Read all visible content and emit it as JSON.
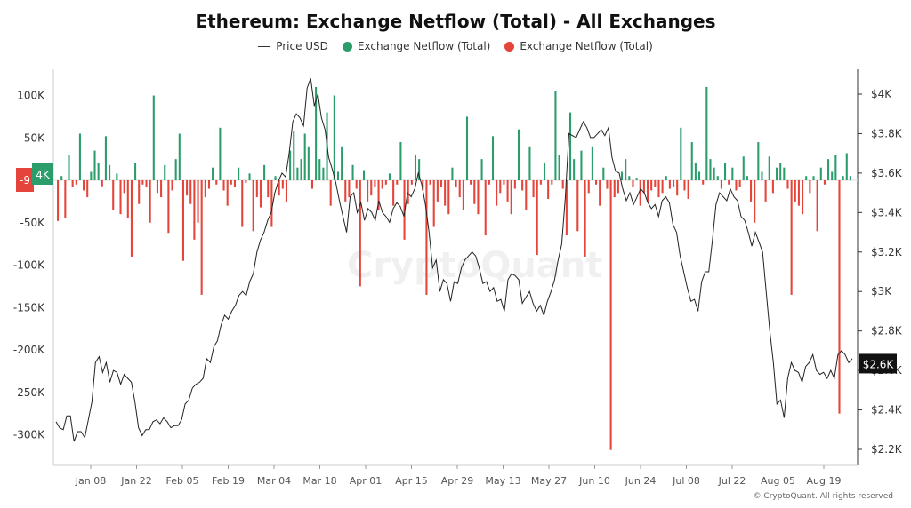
{
  "title": "Ethereum: Exchange Netflow (Total) - All Exchanges",
  "legend": {
    "price": "Price USD",
    "inflow": "Exchange Netflow (Total)",
    "outflow": "Exchange Netflow (Total)"
  },
  "watermark": "CryptoQuant",
  "copyright": "© CryptoQuant. All rights reserved",
  "badges": {
    "left_red": "-9",
    "left_green": "4K",
    "right_price": "$2.6K"
  },
  "colors": {
    "inflow": "#2a9d6a",
    "outflow": "#e5443a",
    "price": "#222222"
  },
  "chart_data": {
    "type": "bar",
    "left_axis": {
      "label": "",
      "ticks": [
        "100K",
        "50K",
        "0",
        "-50K",
        "-100K",
        "-150K",
        "-200K",
        "-250K",
        "-300K"
      ],
      "range": [
        -320000,
        120000
      ]
    },
    "right_axis": {
      "label": "",
      "ticks": [
        "$4K",
        "$3.8K",
        "$3.6K",
        "$3.4K",
        "$3.2K",
        "$3K",
        "$2.8K",
        "$2.6K",
        "$2.4K",
        "$2.2K"
      ],
      "range": [
        2200,
        4080
      ]
    },
    "x_ticks": [
      "Jan 08",
      "Jan 22",
      "Feb 05",
      "Feb 19",
      "Mar 04",
      "Mar 18",
      "Apr 01",
      "Apr 15",
      "Apr 29",
      "May 13",
      "May 27",
      "Jun 10",
      "Jun 24",
      "Jul 08",
      "Jul 22",
      "Aug 05",
      "Aug 19"
    ],
    "netflow_series": {
      "name": "Exchange Netflow (Total)",
      "values": [
        -48000,
        5000,
        -45000,
        30000,
        -8000,
        -5000,
        55000,
        -12000,
        -20000,
        10000,
        35000,
        20000,
        -7000,
        52000,
        18000,
        -35000,
        8000,
        -40000,
        -15000,
        -45000,
        -90000,
        20000,
        -28000,
        -5000,
        -8000,
        -50000,
        100000,
        -15000,
        -20000,
        18000,
        -62000,
        -12000,
        25000,
        55000,
        -95000,
        -18000,
        -28000,
        -70000,
        -50000,
        -135000,
        -20000,
        -10000,
        15000,
        -5000,
        62000,
        -12000,
        -30000,
        -5000,
        -8000,
        15000,
        -55000,
        -3000,
        8000,
        -60000,
        -20000,
        -32000,
        18000,
        -20000,
        -55000,
        5000,
        -18000,
        -10000,
        -25000,
        35000,
        58000,
        15000,
        25000,
        55000,
        40000,
        -10000,
        110000,
        25000,
        15000,
        80000,
        -30000,
        100000,
        10000,
        40000,
        -25000,
        -20000,
        18000,
        -10000,
        -125000,
        12000,
        -25000,
        -18000,
        -8000,
        -35000,
        -10000,
        -5000,
        8000,
        -30000,
        -5000,
        45000,
        -70000,
        -28000,
        -5000,
        30000,
        25000,
        -12000,
        -135000,
        -5000,
        -55000,
        -25000,
        -8000,
        -30000,
        -40000,
        15000,
        -8000,
        -20000,
        -35000,
        75000,
        -5000,
        -28000,
        -40000,
        25000,
        -65000,
        -5000,
        52000,
        -30000,
        -15000,
        -5000,
        -25000,
        -40000,
        -10000,
        60000,
        -12000,
        -35000,
        40000,
        -20000,
        -88000,
        -5000,
        20000,
        -22000,
        -5000,
        105000,
        30000,
        -10000,
        -65000,
        80000,
        25000,
        -60000,
        35000,
        -90000,
        -15000,
        40000,
        -5000,
        -30000,
        15000,
        -10000,
        -318000,
        -20000,
        -15000,
        10000,
        25000,
        5000,
        -8000,
        3000,
        -30000,
        -15000,
        -25000,
        -12000,
        -8000,
        -20000,
        -15000,
        5000,
        -10000,
        -8000,
        -18000,
        62000,
        -12000,
        -22000,
        45000,
        20000,
        10000,
        -5000,
        110000,
        25000,
        15000,
        5000,
        -10000,
        20000,
        -5000,
        15000,
        -12000,
        -8000,
        28000,
        5000,
        -25000,
        -50000,
        45000,
        10000,
        -25000,
        28000,
        -15000,
        15000,
        20000,
        15000,
        -10000,
        -135000,
        -25000,
        -30000,
        -40000,
        5000,
        -15000,
        5000,
        -60000,
        15000,
        -5000,
        25000,
        10000,
        30000,
        -275000,
        5000,
        32000,
        5000
      ],
      "positive_color": "#2a9d6a",
      "negative_color": "#e5443a"
    },
    "price_series": {
      "name": "Price USD",
      "values": [
        2340,
        2310,
        2300,
        2370,
        2370,
        2240,
        2290,
        2290,
        2260,
        2350,
        2440,
        2640,
        2670,
        2590,
        2640,
        2540,
        2600,
        2590,
        2530,
        2580,
        2560,
        2540,
        2440,
        2310,
        2270,
        2300,
        2300,
        2340,
        2350,
        2330,
        2360,
        2340,
        2310,
        2320,
        2320,
        2350,
        2430,
        2450,
        2510,
        2530,
        2540,
        2560,
        2660,
        2640,
        2720,
        2750,
        2830,
        2880,
        2860,
        2900,
        2930,
        2980,
        3000,
        2980,
        3050,
        3090,
        3200,
        3260,
        3300,
        3360,
        3400,
        3500,
        3560,
        3600,
        3580,
        3700,
        3860,
        3900,
        3880,
        3840,
        4030,
        4080,
        3940,
        4000,
        3880,
        3820,
        3680,
        3620,
        3550,
        3460,
        3380,
        3300,
        3480,
        3500,
        3400,
        3450,
        3360,
        3420,
        3400,
        3360,
        3460,
        3400,
        3380,
        3350,
        3420,
        3450,
        3430,
        3380,
        3500,
        3480,
        3520,
        3600,
        3540,
        3440,
        3300,
        3120,
        3160,
        3000,
        3060,
        3040,
        2950,
        3050,
        3040,
        3120,
        3160,
        3180,
        3200,
        3180,
        3120,
        3040,
        3050,
        3000,
        3020,
        2950,
        2960,
        2900,
        3060,
        3090,
        3080,
        3060,
        2940,
        2970,
        3000,
        2940,
        2900,
        2930,
        2880,
        2950,
        3000,
        3060,
        3160,
        3240,
        3480,
        3800,
        3790,
        3780,
        3820,
        3860,
        3830,
        3780,
        3780,
        3800,
        3820,
        3790,
        3830,
        3680,
        3610,
        3600,
        3520,
        3460,
        3500,
        3440,
        3480,
        3520,
        3500,
        3450,
        3420,
        3440,
        3380,
        3460,
        3480,
        3450,
        3340,
        3300,
        3180,
        3100,
        3020,
        2950,
        2960,
        2900,
        3050,
        3100,
        3100,
        3260,
        3440,
        3500,
        3480,
        3460,
        3520,
        3480,
        3460,
        3380,
        3360,
        3300,
        3230,
        3300,
        3250,
        3200,
        3000,
        2800,
        2640,
        2430,
        2450,
        2360,
        2560,
        2640,
        2600,
        2590,
        2540,
        2620,
        2640,
        2680,
        2600,
        2580,
        2590,
        2560,
        2600,
        2560,
        2680,
        2700,
        2680,
        2640,
        2660
      ]
    }
  }
}
